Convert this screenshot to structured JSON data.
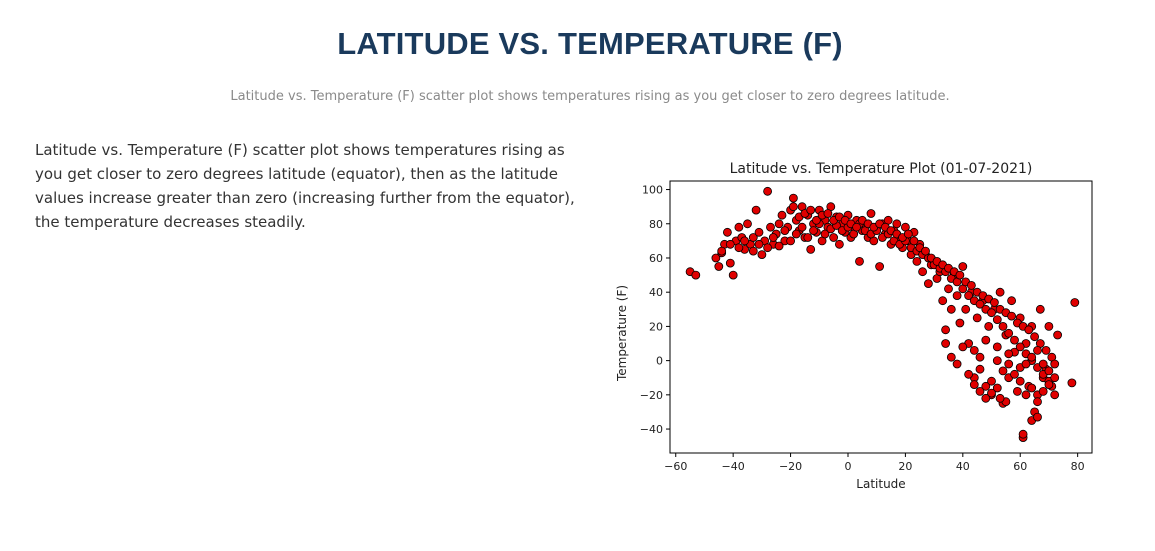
{
  "page": {
    "title": "LATITUDE VS. TEMPERATURE (F)",
    "subtitle": "Latitude vs. Temperature (F) scatter plot shows temperatures rising as you get closer to zero degrees latitude.",
    "description": "Latitude vs. Temperature (F) scatter plot shows temperatures rising as you get closer to zero degrees latitude (equator), then as the latitude values increase greater than zero (increasing further from the equator), the temperature decreases steadily."
  },
  "colors": {
    "title": "#1a3a5c",
    "subtitle": "#8a8a8a",
    "body_text": "#333333",
    "marker_fill": "#e00000",
    "marker_edge": "#000000"
  },
  "chart_data": {
    "type": "scatter",
    "title": "Latitude vs. Temperature Plot (01-07-2021)",
    "xlabel": "Latitude",
    "ylabel": "Temperature (F)",
    "xlim": [
      -62,
      85
    ],
    "ylim": [
      -54,
      105
    ],
    "xticks": [
      -60,
      -40,
      -20,
      0,
      20,
      40,
      60,
      80
    ],
    "yticks": [
      -40,
      -20,
      0,
      20,
      40,
      60,
      80,
      100
    ],
    "grid": false,
    "legend": "none",
    "series": [
      {
        "points": [
          [
            -55,
            52
          ],
          [
            -53,
            50
          ],
          [
            -46,
            60
          ],
          [
            -45,
            55
          ],
          [
            -44,
            63
          ],
          [
            -43,
            68
          ],
          [
            -42,
            75
          ],
          [
            -41,
            57
          ],
          [
            -40,
            50
          ],
          [
            -39,
            70
          ],
          [
            -38,
            78
          ],
          [
            -37,
            72
          ],
          [
            -36,
            65
          ],
          [
            -35,
            80
          ],
          [
            -34,
            68
          ],
          [
            -33,
            72
          ],
          [
            -32,
            88
          ],
          [
            -31,
            75
          ],
          [
            -30,
            62
          ],
          [
            -29,
            70
          ],
          [
            -28,
            99
          ],
          [
            -27,
            78
          ],
          [
            -26,
            68
          ],
          [
            -25,
            74
          ],
          [
            -24,
            80
          ],
          [
            -23,
            85
          ],
          [
            -22,
            70
          ],
          [
            -21,
            78
          ],
          [
            -20,
            88
          ],
          [
            -19,
            95
          ],
          [
            -18,
            82
          ],
          [
            -17,
            76
          ],
          [
            -16,
            90
          ],
          [
            -15,
            72
          ],
          [
            -14,
            85
          ],
          [
            -13,
            65
          ],
          [
            -12,
            80
          ],
          [
            -11,
            75
          ],
          [
            -10,
            88
          ],
          [
            -9,
            70
          ],
          [
            -8,
            82
          ],
          [
            -7,
            78
          ],
          [
            -6,
            90
          ],
          [
            -5,
            72
          ],
          [
            -4,
            84
          ],
          [
            -3,
            68
          ],
          [
            -2,
            80
          ],
          [
            -1,
            75
          ],
          [
            0,
            85
          ],
          [
            1,
            72
          ],
          [
            2,
            78
          ],
          [
            3,
            82
          ],
          [
            4,
            58
          ],
          [
            5,
            76
          ],
          [
            6,
            80
          ],
          [
            7,
            72
          ],
          [
            8,
            86
          ],
          [
            9,
            70
          ],
          [
            10,
            78
          ],
          [
            11,
            55
          ],
          [
            12,
            80
          ],
          [
            13,
            74
          ],
          [
            14,
            82
          ],
          [
            15,
            68
          ],
          [
            16,
            76
          ],
          [
            17,
            80
          ],
          [
            18,
            72
          ],
          [
            19,
            66
          ],
          [
            20,
            78
          ],
          [
            21,
            70
          ],
          [
            22,
            62
          ],
          [
            23,
            75
          ],
          [
            24,
            58
          ],
          [
            25,
            68
          ],
          [
            26,
            52
          ],
          [
            27,
            62
          ],
          [
            28,
            45
          ],
          [
            29,
            56
          ],
          [
            30,
            58
          ],
          [
            31,
            48
          ],
          [
            32,
            52
          ],
          [
            33,
            35
          ],
          [
            34,
            18
          ],
          [
            35,
            42
          ],
          [
            36,
            30
          ],
          [
            37,
            50
          ],
          [
            38,
            38
          ],
          [
            39,
            22
          ],
          [
            40,
            55
          ],
          [
            41,
            30
          ],
          [
            42,
            10
          ],
          [
            43,
            40
          ],
          [
            44,
            -10
          ],
          [
            45,
            25
          ],
          [
            46,
            -5
          ],
          [
            47,
            35
          ],
          [
            48,
            -15
          ],
          [
            49,
            20
          ],
          [
            50,
            -20
          ],
          [
            51,
            30
          ],
          [
            52,
            0
          ],
          [
            53,
            40
          ],
          [
            54,
            -25
          ],
          [
            55,
            15
          ],
          [
            56,
            -10
          ],
          [
            57,
            35
          ],
          [
            58,
            5
          ],
          [
            59,
            -18
          ],
          [
            60,
            25
          ],
          [
            61,
            -45
          ],
          [
            62,
            10
          ],
          [
            63,
            -15
          ],
          [
            64,
            20
          ],
          [
            65,
            -30
          ],
          [
            66,
            -20
          ],
          [
            67,
            30
          ],
          [
            68,
            -10
          ],
          [
            69,
            -5
          ],
          [
            70,
            20
          ],
          [
            71,
            -15
          ],
          [
            72,
            -20
          ],
          [
            73,
            15
          ],
          [
            78,
            -13
          ],
          [
            79,
            34
          ],
          [
            -44,
            64
          ],
          [
            -41,
            68
          ],
          [
            -38,
            66
          ],
          [
            -36,
            70
          ],
          [
            -33,
            64
          ],
          [
            -31,
            68
          ],
          [
            -28,
            66
          ],
          [
            -26,
            72
          ],
          [
            -24,
            67
          ],
          [
            -22,
            76
          ],
          [
            -20,
            70
          ],
          [
            -18,
            74
          ],
          [
            -16,
            78
          ],
          [
            -14,
            72
          ],
          [
            -12,
            76
          ],
          [
            -10,
            80
          ],
          [
            -8,
            74
          ],
          [
            -6,
            77
          ],
          [
            -4,
            79
          ],
          [
            -2,
            76
          ],
          [
            0,
            78
          ],
          [
            2,
            74
          ],
          [
            4,
            80
          ],
          [
            6,
            76
          ],
          [
            8,
            74
          ],
          [
            10,
            76
          ],
          [
            12,
            72
          ],
          [
            14,
            74
          ],
          [
            16,
            70
          ],
          [
            18,
            68
          ],
          [
            20,
            70
          ],
          [
            22,
            66
          ],
          [
            24,
            64
          ],
          [
            26,
            62
          ],
          [
            28,
            60
          ],
          [
            30,
            56
          ],
          [
            32,
            54
          ],
          [
            34,
            52
          ],
          [
            36,
            48
          ],
          [
            38,
            46
          ],
          [
            40,
            42
          ],
          [
            42,
            38
          ],
          [
            44,
            35
          ],
          [
            46,
            33
          ],
          [
            48,
            30
          ],
          [
            50,
            28
          ],
          [
            52,
            24
          ],
          [
            54,
            20
          ],
          [
            56,
            16
          ],
          [
            58,
            12
          ],
          [
            60,
            8
          ],
          [
            62,
            4
          ],
          [
            64,
            0
          ],
          [
            66,
            -4
          ],
          [
            68,
            -8
          ],
          [
            70,
            -12
          ],
          [
            -19,
            90
          ],
          [
            -17,
            84
          ],
          [
            -15,
            86
          ],
          [
            -13,
            88
          ],
          [
            -11,
            82
          ],
          [
            -9,
            85
          ],
          [
            -7,
            86
          ],
          [
            -5,
            82
          ],
          [
            -3,
            84
          ],
          [
            -1,
            82
          ],
          [
            1,
            80
          ],
          [
            3,
            78
          ],
          [
            5,
            82
          ],
          [
            7,
            80
          ],
          [
            9,
            78
          ],
          [
            11,
            80
          ],
          [
            13,
            78
          ],
          [
            15,
            76
          ],
          [
            17,
            74
          ],
          [
            19,
            72
          ],
          [
            21,
            74
          ],
          [
            23,
            70
          ],
          [
            25,
            66
          ],
          [
            27,
            64
          ],
          [
            29,
            60
          ],
          [
            31,
            58
          ],
          [
            33,
            56
          ],
          [
            35,
            54
          ],
          [
            37,
            52
          ],
          [
            39,
            50
          ],
          [
            41,
            46
          ],
          [
            43,
            44
          ],
          [
            45,
            40
          ],
          [
            47,
            38
          ],
          [
            49,
            36
          ],
          [
            51,
            34
          ],
          [
            53,
            30
          ],
          [
            55,
            28
          ],
          [
            57,
            26
          ],
          [
            59,
            22
          ],
          [
            61,
            20
          ],
          [
            63,
            18
          ],
          [
            65,
            14
          ],
          [
            67,
            10
          ],
          [
            69,
            6
          ],
          [
            71,
            2
          ],
          [
            34,
            10
          ],
          [
            36,
            2
          ],
          [
            38,
            -2
          ],
          [
            40,
            8
          ],
          [
            42,
            -8
          ],
          [
            44,
            -14
          ],
          [
            46,
            -18
          ],
          [
            48,
            -22
          ],
          [
            50,
            -12
          ],
          [
            52,
            -16
          ],
          [
            54,
            -6
          ],
          [
            56,
            -2
          ],
          [
            58,
            -8
          ],
          [
            60,
            -12
          ],
          [
            62,
            -20
          ],
          [
            64,
            -16
          ],
          [
            66,
            -24
          ],
          [
            68,
            -18
          ],
          [
            70,
            -14
          ],
          [
            72,
            -10
          ],
          [
            61,
            -43
          ],
          [
            64,
            -35
          ],
          [
            66,
            -33
          ],
          [
            55,
            -24
          ],
          [
            53,
            -22
          ],
          [
            50,
            -19
          ],
          [
            46,
            2
          ],
          [
            44,
            6
          ],
          [
            48,
            12
          ],
          [
            52,
            8
          ],
          [
            56,
            4
          ],
          [
            60,
            -4
          ],
          [
            62,
            -2
          ],
          [
            64,
            2
          ],
          [
            66,
            6
          ],
          [
            68,
            -2
          ],
          [
            70,
            -6
          ],
          [
            72,
            -2
          ]
        ]
      }
    ]
  }
}
